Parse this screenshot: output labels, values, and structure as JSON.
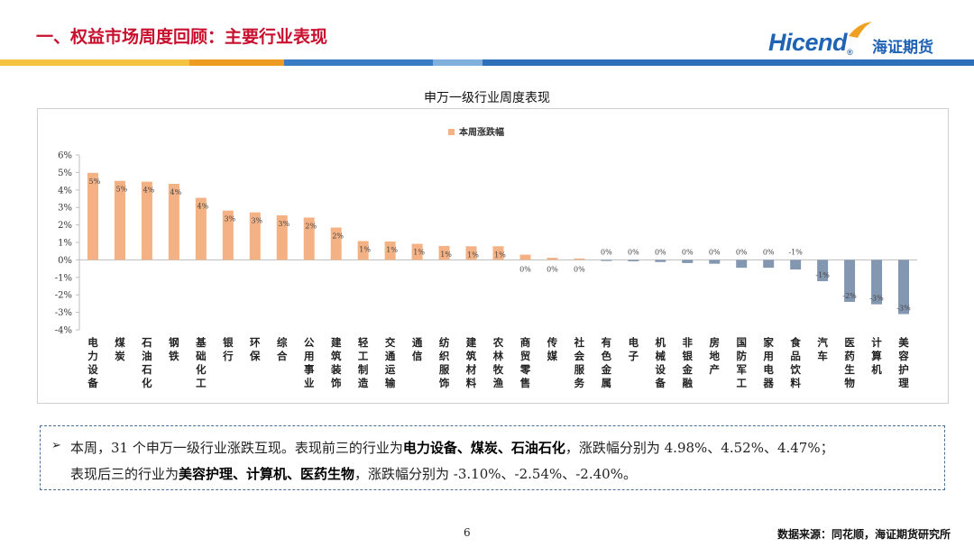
{
  "header": {
    "title": "一、权益市场周度回顾：主要行业表现",
    "logo_text": "Hicend",
    "logo_registered": "®",
    "logo_cn": "海证期货"
  },
  "colors": {
    "title_red": "#c8102e",
    "positive_bar": "#f4b183",
    "negative_bar": "#8497b0",
    "band_yellow": "#f5c342",
    "band_orange": "#ee9b22",
    "band_lightblue": "#7fb0de",
    "band_blue": "#2d6fb8",
    "logo_blue": "#1f63b5"
  },
  "chart_data": {
    "type": "bar",
    "title": "申万一级行业周度表现",
    "legend": [
      "本周涨跌幅"
    ],
    "legend_position": "top-center",
    "ylim": [
      -4,
      6
    ],
    "yticks": [
      "6%",
      "5%",
      "4%",
      "3%",
      "2%",
      "1%",
      "0%",
      "-1%",
      "-2%",
      "-3%",
      "-4%"
    ],
    "grid": false,
    "categories": [
      "电力设备",
      "煤炭",
      "石油石化",
      "钢铁",
      "基础化工",
      "银行",
      "环保",
      "综合",
      "公用事业",
      "建筑装饰",
      "轻工制造",
      "交通运输",
      "通信",
      "纺织服饰",
      "建筑材料",
      "农林牧渔",
      "商贸零售",
      "传媒",
      "社会服务",
      "有色金属",
      "电子",
      "机械设备",
      "非银金融",
      "房地产",
      "国防军工",
      "家用电器",
      "食品饮料",
      "汽车",
      "医药生物",
      "计算机",
      "美容护理"
    ],
    "values": [
      4.98,
      4.52,
      4.47,
      4.35,
      3.55,
      2.82,
      2.72,
      2.55,
      2.42,
      1.85,
      1.08,
      1.05,
      0.92,
      0.8,
      0.78,
      0.78,
      0.3,
      0.12,
      0.08,
      -0.06,
      -0.08,
      -0.12,
      -0.18,
      -0.22,
      -0.45,
      -0.45,
      -0.55,
      -1.22,
      -2.4,
      -2.54,
      -3.1
    ],
    "data_labels": [
      "5%",
      "5%",
      "4%",
      "4%",
      "4%",
      "3%",
      "3%",
      "3%",
      "2%",
      "2%",
      "1%",
      "1%",
      "1%",
      "1%",
      "1%",
      "1%",
      "0%",
      "0%",
      "0%",
      "0%",
      "0%",
      "0%",
      "0%",
      "0%",
      "0%",
      "0%",
      "-1%",
      "-1%",
      "-2%",
      "-3%",
      "-3%"
    ]
  },
  "note": {
    "arrow": "➢",
    "line1": [
      {
        "t": "本周，31 个申万一级行业涨跌互现。表现前三的行业为",
        "b": false
      },
      {
        "t": "电力设备、煤炭、石油石化",
        "b": true
      },
      {
        "t": "，涨跌幅分别为 4.98%、4.52%、4.47%；",
        "b": false
      }
    ],
    "line2": [
      {
        "t": "表现后三的行业为",
        "b": false
      },
      {
        "t": "美容护理、计算机、医药生物",
        "b": true
      },
      {
        "t": "，涨跌幅分别为 -3.10%、-2.54%、-2.40%。",
        "b": false
      }
    ]
  },
  "footer": {
    "page_number": "6",
    "source": "数据来源：同花顺，海证期货研究所"
  }
}
